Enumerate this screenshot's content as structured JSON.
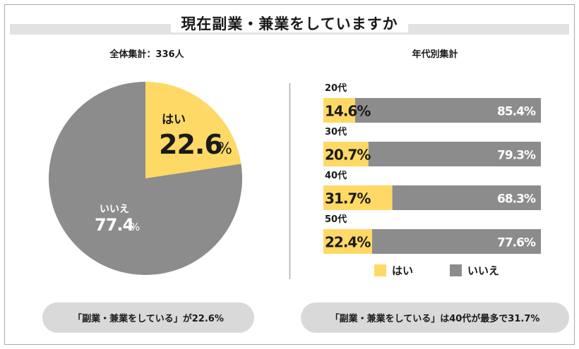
{
  "title": "現在副業・兼業をしていますか",
  "pie": {
    "subtitle": "全体集計：336人",
    "slices": [
      {
        "label": "はい",
        "value": 22.6,
        "value_text": "22.6",
        "unit": "%",
        "color": "#ffd966"
      },
      {
        "label": "いいえ",
        "value": 77.4,
        "value_text": "77.4",
        "unit": "%",
        "color": "#8c8c8c"
      }
    ]
  },
  "bars": {
    "subtitle": "年代別集計"
  },
  "legend": {
    "yes": "はい",
    "no": "いいえ"
  },
  "colors": {
    "yes": "#ffd966",
    "no": "#8c8c8c",
    "pill": "#d9d9d9"
  },
  "notes": {
    "left": "「副業・兼業をしている」が22.6%",
    "right": "「副業・兼業をしている」は40代が最多で31.7%"
  },
  "chart_data": [
    {
      "type": "pie",
      "title": "現在副業・兼業をしていますか",
      "subtitle": "全体集計：336人",
      "categories": [
        "はい",
        "いいえ"
      ],
      "values": [
        22.6,
        77.4
      ],
      "unit": "%"
    },
    {
      "type": "bar",
      "orientation": "horizontal",
      "stacked": true,
      "subtitle": "年代別集計",
      "categories": [
        "20代",
        "30代",
        "40代",
        "50代"
      ],
      "series": [
        {
          "name": "はい",
          "values": [
            14.6,
            20.7,
            31.7,
            22.4
          ]
        },
        {
          "name": "いいえ",
          "values": [
            85.4,
            79.3,
            68.3,
            77.6
          ]
        }
      ],
      "xlim": [
        0,
        100
      ],
      "unit": "%",
      "legend": "bottom"
    }
  ]
}
